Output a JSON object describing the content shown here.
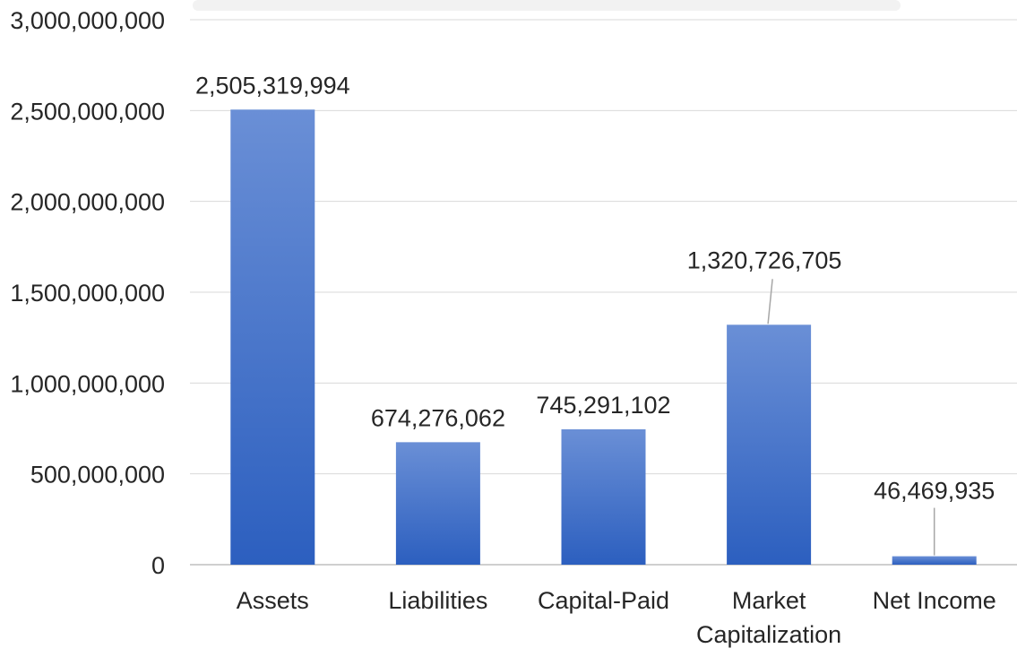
{
  "chart_data": {
    "type": "bar",
    "categories": [
      "Assets",
      "Liabilities",
      "Capital-Paid",
      "Market Capitalization",
      "Net Income"
    ],
    "category_lines": [
      [
        "Assets"
      ],
      [
        "Liabilities"
      ],
      [
        "Capital-Paid"
      ],
      [
        "Market",
        "Capitalization"
      ],
      [
        "Net Income"
      ]
    ],
    "values": [
      2505319994,
      674276062,
      745291102,
      1320726705,
      46469935
    ],
    "value_labels": [
      "2,505,319,994",
      "674,276,062",
      "745,291,102",
      "1,320,726,705",
      "46,469,935"
    ],
    "ylim": [
      0,
      3000000000
    ],
    "y_ticks": [
      0,
      500000000,
      1000000000,
      1500000000,
      2000000000,
      2500000000,
      3000000000
    ],
    "y_tick_labels": [
      "0",
      "500,000,000",
      "1,000,000,000",
      "1,500,000,000",
      "2,000,000,000",
      "2,500,000,000",
      "3,000,000,000"
    ],
    "grid": true,
    "legend": "none",
    "colors": {
      "bar_top": "#6a8fd6",
      "bar_bottom": "#2c5fbf",
      "grid": "#d9d9d9",
      "axis": "#bfbfbf",
      "text": "#262626"
    }
  }
}
